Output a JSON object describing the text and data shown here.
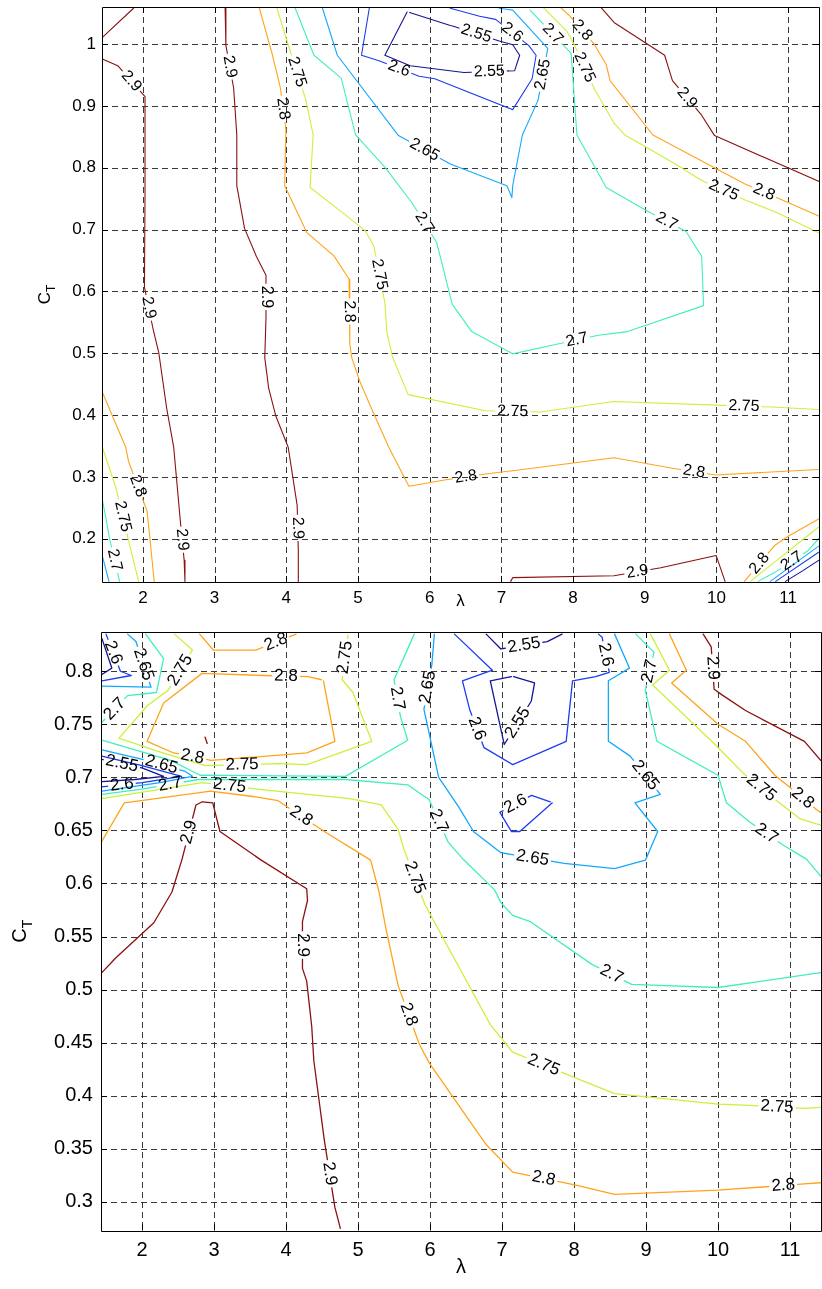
{
  "chart_data": [
    {
      "type": "line",
      "xlabel": "λ",
      "ylabel": "C$_{T}$",
      "xlim": [
        1.43,
        11.43
      ],
      "ylim": [
        0.13,
        1.06
      ],
      "xticks": [
        2,
        3,
        4,
        5,
        6,
        7,
        8,
        9,
        10,
        11
      ],
      "yticks": [
        0.2,
        0.3,
        0.4,
        0.5,
        0.6,
        0.7,
        0.8,
        0.9,
        1
      ],
      "grid": true,
      "series": [
        {
          "color": "#8b1010",
          "x": [
            1.435,
            1.87
          ],
          "values": [
            1.011,
            1.058
          ]
        },
        {
          "color": "#8b1010",
          "x": [
            1.435,
            1.65,
            2.03,
            2.03,
            2.022,
            2.141,
            2.223,
            2.332,
            2.43,
            2.52,
            2.576,
            2.587
          ],
          "values": [
            0.976,
            0.965,
            0.915,
            0.76,
            0.607,
            0.54,
            0.5,
            0.411,
            0.348,
            0.232,
            0.165,
            0.131
          ]
        },
        {
          "color": "#8b1010",
          "x": [
            3.147,
            3.158,
            3.266,
            3.31,
            3.31,
            3.418,
            3.582,
            3.717,
            3.717,
            3.7,
            3.755,
            3.853,
            4.027,
            4.152,
            4.168,
            4.168
          ],
          "values": [
            1.058,
            0.998,
            0.929,
            0.853,
            0.771,
            0.702,
            0.657,
            0.626,
            0.556,
            0.493,
            0.443,
            0.399,
            0.348,
            0.254,
            0.181,
            0.131
          ]
        },
        {
          "color": "#ffa41a",
          "x": [
            3.625,
            3.799,
            3.918,
            3.995,
            3.978,
            4.288,
            4.668,
            4.875,
            4.886,
            4.913,
            5.02,
            5.21,
            5.43,
            5.71,
            6.207,
            6.804,
            7.16,
            8.571,
            9.386,
            9.984,
            11.425
          ],
          "values": [
            1.058,
            0.986,
            0.929,
            0.862,
            0.771,
            0.695,
            0.657,
            0.62,
            0.515,
            0.493,
            0.456,
            0.405,
            0.348,
            0.285,
            0.295,
            0.305,
            0.31,
            0.331,
            0.314,
            0.303,
            0.312
          ]
        },
        {
          "color": "#c8f23c",
          "x": [
            3.87,
            4.027,
            4.27,
            4.375,
            4.332,
            4.723,
            5.103,
            5.223,
            5.375,
            5.402,
            5.484,
            5.7,
            6.777,
            7.54,
            8.571,
            9.995,
            10.77,
            11.425
          ],
          "values": [
            1.058,
            0.999,
            0.911,
            0.853,
            0.768,
            0.733,
            0.698,
            0.673,
            0.582,
            0.534,
            0.493,
            0.433,
            0.407,
            0.405,
            0.422,
            0.416,
            0.413,
            0.409
          ]
        },
        {
          "color": "#40eec0",
          "x": [
            4.125,
            4.386,
            4.766,
            4.967,
            5.375,
            5.755,
            6.098,
            6.315,
            6.587,
            7.158,
            7.755,
            8.353,
            8.76,
            9.82,
            9.793,
            9.576,
            9.033,
            8.462,
            8.054,
            7.973,
            7.457,
            7.4
          ],
          "values": [
            1.058,
            0.982,
            0.945,
            0.853,
            0.801,
            0.743,
            0.679,
            0.579,
            0.535,
            0.499,
            0.514,
            0.529,
            0.535,
            0.577,
            0.657,
            0.697,
            0.73,
            0.768,
            0.853,
            0.985,
            1.048,
            1.055
          ]
        },
        {
          "color": "#12a8ff",
          "x": [
            4.505,
            4.712,
            5.565,
            6.288,
            7.076,
            7.147,
            7.158,
            7.293,
            7.511,
            7.647,
            7.158,
            6.967
          ],
          "values": [
            1.058,
            0.982,
            0.852,
            0.806,
            0.771,
            0.752,
            0.771,
            0.853,
            0.909,
            0.993,
            1.055,
            1.058
          ]
        },
        {
          "color": "#1c3cf0",
          "x": [
            5.158,
            5.049,
            5.293,
            5.853,
            6.07,
            7.158,
            7.429,
            7.484,
            7.38,
            6.92,
            6.696,
            6.288
          ],
          "values": [
            1.058,
            0.982,
            0.973,
            0.948,
            0.944,
            0.894,
            0.944,
            0.982,
            0.998,
            1.04,
            1.045,
            1.058
          ]
        },
        {
          "color": "#141496",
          "x": [
            5.685,
            5.375,
            5.728,
            6.478,
            7.185,
            7.255,
            7.158,
            6.97,
            6.33,
            6.288,
            5.72
          ],
          "values": [
            1.052,
            0.982,
            0.965,
            0.954,
            0.957,
            0.982,
            0.999,
            1.005,
            1.029,
            1.03,
            1.051
          ]
        },
        {
          "color": "#c8f23c",
          "x": [
            7.592,
            7.918,
            8.02,
            8.3,
            8.571,
            8.723,
            9.386,
            9.8,
            10.4,
            10.853,
            11.425
          ],
          "values": [
            1.058,
            1.02,
            0.998,
            0.927,
            0.872,
            0.853,
            0.809,
            0.779,
            0.748,
            0.727,
            0.695
          ]
        },
        {
          "color": "#ffa41a",
          "x": [
            7.837,
            7.95,
            8.3,
            8.462,
            8.516,
            9.114,
            10.391,
            10.935,
            11.425
          ],
          "values": [
            1.058,
            1.046,
            0.999,
            0.967,
            0.941,
            0.853,
            0.774,
            0.747,
            0.722
          ]
        },
        {
          "color": "#8b1010",
          "x": [
            8.397,
            8.571,
            9.277,
            9.386,
            9.793,
            9.973,
            11.425
          ],
          "values": [
            1.058,
            1.035,
            0.982,
            0.941,
            0.885,
            0.852,
            0.778
          ]
        },
        {
          "color": "#8b1010",
          "x": [
            7.13,
            7.158,
            8.571,
            9.223,
            9.995,
            10.12
          ],
          "values": [
            0.131,
            0.137,
            0.14,
            0.153,
            0.173,
            0.131
          ]
        },
        {
          "color": "#ffa41a",
          "x": [
            10.39,
            10.81,
            11.0,
            11.425
          ],
          "values": [
            0.131,
            0.189,
            0.204,
            0.232
          ]
        },
        {
          "color": "#c8f23c",
          "x": [
            10.473,
            11.425
          ],
          "values": [
            0.131,
            0.219
          ]
        },
        {
          "color": "#40eec0",
          "x": [
            10.582,
            10.82,
            11.28,
            11.425
          ],
          "values": [
            0.131,
            0.146,
            0.181,
            0.2
          ]
        },
        {
          "color": "#12a8ff",
          "x": [
            10.75,
            11.425
          ],
          "values": [
            0.131,
            0.188
          ]
        },
        {
          "color": "#1c3cf0",
          "x": [
            10.826,
            11.425
          ],
          "values": [
            0.131,
            0.178
          ]
        },
        {
          "color": "#141496",
          "x": [
            10.962,
            11.2,
            11.425
          ],
          "values": [
            0.131,
            0.148,
            0.165
          ]
        },
        {
          "color": "#ffa41a",
          "x": [
            1.435,
            1.761,
            1.8,
            2.058,
            2.09,
            2.158
          ],
          "values": [
            0.437,
            0.348,
            0.325,
            0.245,
            0.21,
            0.131
          ]
        },
        {
          "color": "#c8f23c",
          "x": [
            1.435,
            1.625,
            1.815,
            1.94
          ],
          "values": [
            0.348,
            0.282,
            0.19,
            0.131
          ]
        },
        {
          "color": "#40eec0",
          "x": [
            1.435,
            1.49,
            1.535,
            1.675
          ],
          "values": [
            0.263,
            0.23,
            0.2,
            0.131
          ]
        },
        {
          "color": "#12a8ff",
          "x": [
            1.435,
            1.527
          ],
          "values": [
            0.172,
            0.131
          ]
        }
      ],
      "annotations": [
        {
          "text": "2.9",
          "x": 1.84,
          "y": 0.94
        },
        {
          "text": "2.9",
          "x": 2.0815,
          "y": 0.5735
        },
        {
          "text": "2.9",
          "x": 2.548,
          "y": 0.1985
        },
        {
          "text": "2.9",
          "x": 3.212,
          "y": 0.9635
        },
        {
          "text": "2.9",
          "x": 3.717,
          "y": 0.591
        },
        {
          "text": "2.9",
          "x": 4.16,
          "y": 0.2175
        },
        {
          "text": "2.9",
          "x": 9.5895,
          "y": 0.913
        },
        {
          "text": "2.9",
          "x": 8.897,
          "y": 0.1465
        },
        {
          "text": "2.8",
          "x": 3.9565,
          "y": 0.8955
        },
        {
          "text": "2.8",
          "x": 4.8805,
          "y": 0.5675
        },
        {
          "text": "2.8",
          "x": 6.5055,
          "y": 0.3
        },
        {
          "text": "2.8",
          "x": 9.685,
          "y": 0.3085
        },
        {
          "text": "2.8",
          "x": 8.125,
          "y": 1.0225
        },
        {
          "text": "2.8",
          "x": 10.663,
          "y": 0.7605
        },
        {
          "text": "2.8",
          "x": 1.929,
          "y": 0.285
        },
        {
          "text": "2.8",
          "x": 10.6,
          "y": 0.16
        },
        {
          "text": "2.75",
          "x": 4.1485,
          "y": 0.955
        },
        {
          "text": "2.75",
          "x": 5.299,
          "y": 0.6275
        },
        {
          "text": "2.75",
          "x": 7.1585,
          "y": 0.406
        },
        {
          "text": "2.75",
          "x": 10.3825,
          "y": 0.4145
        },
        {
          "text": "2.75",
          "x": 8.16,
          "y": 0.9625
        },
        {
          "text": "2.75",
          "x": 10.1,
          "y": 0.7635
        },
        {
          "text": "2.75",
          "x": 1.72,
          "y": 0.236
        },
        {
          "text": "2.7",
          "x": 5.9265,
          "y": 0.711
        },
        {
          "text": "2.7",
          "x": 8.054,
          "y": 0.5215
        },
        {
          "text": "2.7",
          "x": 9.3045,
          "y": 0.7135
        },
        {
          "text": "2.7",
          "x": 7.715,
          "y": 1.0165
        },
        {
          "text": "2.7",
          "x": 1.605,
          "y": 0.1655
        },
        {
          "text": "2.7",
          "x": 11.05,
          "y": 0.1635
        },
        {
          "text": "2.65",
          "x": 5.9265,
          "y": 0.829
        },
        {
          "text": "2.65",
          "x": 7.579,
          "y": 0.951
        },
        {
          "text": "2.6",
          "x": 5.573,
          "y": 0.9605
        },
        {
          "text": "2.6",
          "x": 7.15,
          "y": 1.019
        },
        {
          "text": "2.55",
          "x": 6.8315,
          "y": 0.9555
        },
        {
          "text": "2.55",
          "x": 6.65,
          "y": 1.017
        }
      ]
    },
    {
      "type": "line",
      "xlabel": "λ",
      "ylabel": "C$_{T}$",
      "xlim": [
        1.43,
        11.43
      ],
      "ylim": [
        0.273,
        0.837
      ],
      "xticks": [
        2,
        3,
        4,
        5,
        6,
        7,
        8,
        9,
        10,
        11
      ],
      "yticks": [
        0.3,
        0.35,
        0.4,
        0.45,
        0.5,
        0.55,
        0.6,
        0.65,
        0.7,
        0.75,
        0.8
      ],
      "grid": true,
      "series": [
        {
          "color": "#8b1010",
          "x": [
            1.442,
            1.637,
            2.164,
            2.415,
            2.556,
            2.749,
            2.836,
            2.982,
            3.082,
            3.655,
            4.287,
            4.298,
            4.228,
            4.228,
            4.287,
            4.357,
            4.386,
            4.532,
            4.678,
            4.754
          ],
          "values": [
            0.516,
            0.53,
            0.563,
            0.592,
            0.623,
            0.674,
            0.677,
            0.676,
            0.649,
            0.622,
            0.595,
            0.584,
            0.564,
            0.52,
            0.508,
            0.465,
            0.433,
            0.358,
            0.295,
            0.275
          ]
        },
        {
          "color": "#8b1010",
          "x": [
            9.794,
            9.905,
            9.946,
            10.05,
            10.381,
            11.2,
            11.425
          ],
          "values": [
            0.835,
            0.823,
            0.783,
            0.778,
            0.763,
            0.734,
            0.716
          ]
        },
        {
          "color": "#ffa41a",
          "x": [
            1.442,
            1.754,
            2.953,
            3.538,
            3.889,
            4.532,
            5.175,
            5.292,
            5.38,
            5.556,
            5.848,
            5.988,
            6.779,
            7.148,
            8.009,
            8.565,
            10.0,
            10.614,
            11.2,
            11.425
          ],
          "values": [
            0.64,
            0.676,
            0.687,
            0.682,
            0.678,
            0.649,
            0.622,
            0.592,
            0.56,
            0.504,
            0.449,
            0.431,
            0.354,
            0.328,
            0.316,
            0.307,
            0.311,
            0.314,
            0.317,
            0.318
          ]
        },
        {
          "color": "#c8f23c",
          "x": [
            1.442,
            2.836,
            3.596,
            4.883,
            5.322,
            5.556,
            5.643,
            5.93,
            6.837,
            7.148,
            8.009,
            8.565,
            10.0,
            10.439,
            11.2,
            11.425
          ],
          "values": [
            0.68,
            0.695,
            0.689,
            0.68,
            0.674,
            0.651,
            0.631,
            0.58,
            0.467,
            0.441,
            0.417,
            0.402,
            0.392,
            0.391,
            0.388,
            0.389
          ]
        },
        {
          "color": "#40eec0",
          "x": [
            1.442,
            2.0,
            2.78,
            4.825,
            5.69,
            5.988,
            6.252,
            6.457,
            6.896,
            6.984,
            7.148,
            7.394,
            8.243,
            8.799,
            10.0,
            11.425
          ],
          "values": [
            0.684,
            0.689,
            0.698,
            0.698,
            0.693,
            0.679,
            0.639,
            0.623,
            0.594,
            0.582,
            0.57,
            0.564,
            0.524,
            0.505,
            0.502,
            0.516
          ]
        },
        {
          "color": "#40eec0",
          "x": [
            1.442,
            2.4,
            2.807,
            4.825,
            5.69,
            5.59,
            5.5,
            5.78
          ],
          "values": [
            0.735,
            0.716,
            0.702,
            0.701,
            0.735,
            0.757,
            0.792,
            0.835
          ]
        },
        {
          "color": "#12a8ff",
          "x": [
            8.564,
            8.769,
            8.477,
            8.477,
            8.78,
            9.198,
            8.846,
            9.162,
            8.992,
            8.564,
            7.862,
            6.984,
            6.603,
            6.4,
            6.12,
            5.915,
            6.025,
            6.06
          ],
          "values": [
            0.835,
            0.803,
            0.791,
            0.734,
            0.72,
            0.684,
            0.676,
            0.649,
            0.622,
            0.614,
            0.619,
            0.629,
            0.649,
            0.672,
            0.7,
            0.764,
            0.806,
            0.835
          ]
        },
        {
          "color": "#1c3cf0",
          "x": [
            6.34,
            6.866,
            6.45,
            6.55,
            6.75,
            7.148,
            7.891,
            7.979,
            8.3,
            8.49,
            8.39,
            8.34
          ],
          "values": [
            0.835,
            0.801,
            0.791,
            0.764,
            0.728,
            0.712,
            0.734,
            0.791,
            0.795,
            0.799,
            0.832,
            0.835
          ]
        },
        {
          "color": "#141496",
          "x": [
            6.78,
            6.984,
            7.628,
            7.833
          ],
          "values": [
            0.835,
            0.821,
            0.828,
            0.835
          ]
        },
        {
          "color": "#141496",
          "x": [
            7.13,
            6.837,
            7.03,
            7.407,
            7.452,
            7.16
          ],
          "values": [
            0.795,
            0.791,
            0.731,
            0.772,
            0.789,
            0.795
          ]
        },
        {
          "color": "#1c3cf0",
          "x": [
            7.698,
            7.247,
            7.13,
            6.97,
            7.41,
            7.67
          ],
          "values": [
            0.676,
            0.649,
            0.649,
            0.667,
            0.683,
            0.677
          ]
        },
        {
          "color": "#40eec0",
          "x": [
            8.858,
            9.11,
            8.99,
            9.151,
            10.0,
            10.117,
            10.439,
            10.907,
            11.228,
            11.425
          ],
          "values": [
            0.835,
            0.818,
            0.782,
            0.734,
            0.702,
            0.676,
            0.658,
            0.636,
            0.623,
            0.607
          ]
        },
        {
          "color": "#c8f23c",
          "x": [
            9.062,
            9.326,
            9.092,
            9.912,
            10.35,
            10.85,
            11.14,
            11.425
          ],
          "values": [
            0.835,
            0.801,
            0.787,
            0.734,
            0.704,
            0.676,
            0.661,
            0.655
          ]
        },
        {
          "color": "#ffa41a",
          "x": [
            9.326,
            9.56,
            9.355,
            10.0,
            10.381,
            10.79,
            10.97,
            11.38,
            11.425
          ],
          "values": [
            0.835,
            0.801,
            0.789,
            0.75,
            0.734,
            0.702,
            0.692,
            0.669,
            0.667
          ]
        },
        {
          "color": "#ffa41a",
          "x": [
            2.8,
            2.99,
            3.58,
            4.14
          ],
          "values": [
            0.835,
            0.82,
            0.82,
            0.835
          ]
        },
        {
          "color": "#ffa41a",
          "x": [
            4.52,
            4.68,
            4.29,
            2.96,
            2.44,
            2.07,
            2.3,
            2.833,
            3.69,
            4.31,
            4.49
          ],
          "values": [
            0.791,
            0.734,
            0.723,
            0.716,
            0.723,
            0.734,
            0.77,
            0.798,
            0.796,
            0.795,
            0.792
          ]
        },
        {
          "color": "#c8f23c",
          "x": [
            2.45,
            2.7,
            2.36,
            2.08,
            1.68,
            2.2,
            2.88,
            3.9,
            4.29,
            5.19,
            4.93,
            4.78,
            4.86
          ],
          "values": [
            0.835,
            0.82,
            0.782,
            0.768,
            0.737,
            0.725,
            0.711,
            0.713,
            0.712,
            0.734,
            0.78,
            0.792,
            0.834
          ]
        },
        {
          "color": "#141496",
          "x": [
            1.442,
            1.58,
            1.442
          ],
          "values": [
            0.831,
            0.803,
            0.797
          ]
        },
        {
          "color": "#1c3cf0",
          "x": [
            1.5,
            1.7,
            1.85,
            1.442
          ],
          "values": [
            0.835,
            0.8,
            0.796,
            0.791
          ]
        },
        {
          "color": "#12a8ff",
          "x": [
            1.8,
            1.915,
            2.125,
            1.442
          ],
          "values": [
            0.835,
            0.828,
            0.785,
            0.786
          ]
        },
        {
          "color": "#40eec0",
          "x": [
            2.05,
            2.3,
            2.2,
            1.8,
            1.442
          ],
          "values": [
            0.835,
            0.812,
            0.78,
            0.777,
            0.752
          ]
        },
        {
          "color": "#141496",
          "x": [
            1.442,
            1.998,
            2.3,
            1.9,
            1.442
          ],
          "values": [
            0.717,
            0.709,
            0.701,
            0.698,
            0.696
          ]
        },
        {
          "color": "#1c3cf0",
          "x": [
            1.442,
            2.0,
            2.55,
            2.0,
            1.442
          ],
          "values": [
            0.72,
            0.711,
            0.701,
            0.695,
            0.691
          ]
        },
        {
          "color": "#12a8ff",
          "x": [
            1.442,
            1.95,
            2.59,
            2.7,
            2.25,
            1.442
          ],
          "values": [
            0.726,
            0.718,
            0.706,
            0.701,
            0.695,
            0.687
          ]
        },
        {
          "color": "#8b1010",
          "x": [
            2.875,
            2.905
          ],
          "values": [
            0.738,
            0.732
          ]
        }
      ],
      "annotations": [
        {
          "text": "2.9",
          "x": 2.6525,
          "y": 0.6485
        },
        {
          "text": "2.9",
          "x": 4.228,
          "y": 0.542
        },
        {
          "text": "2.9",
          "x": 4.605,
          "y": 0.3265
        },
        {
          "text": "2.9",
          "x": 9.9255,
          "y": 0.803
        },
        {
          "text": "2.8",
          "x": 4.2105,
          "y": 0.6635
        },
        {
          "text": "2.8",
          "x": 5.702,
          "y": 0.4765
        },
        {
          "text": "2.8",
          "x": 7.5785,
          "y": 0.322
        },
        {
          "text": "2.8",
          "x": 10.907,
          "y": 0.3155
        },
        {
          "text": "2.8",
          "x": 11.175,
          "y": 0.6805
        },
        {
          "text": "2.8",
          "x": 3.86,
          "y": 0.8275
        },
        {
          "text": "2.8",
          "x": 4.0,
          "y": 0.7955
        },
        {
          "text": "2.8",
          "x": 2.7,
          "y": 0.7195
        },
        {
          "text": "2.75",
          "x": 3.216,
          "y": 0.692
        },
        {
          "text": "2.75",
          "x": 5.7865,
          "y": 0.6055
        },
        {
          "text": "2.75",
          "x": 7.5785,
          "y": 0.429
        },
        {
          "text": "2.75",
          "x": 10.8195,
          "y": 0.3895
        },
        {
          "text": "2.75",
          "x": 10.6,
          "y": 0.69
        },
        {
          "text": "2.75",
          "x": 2.53,
          "y": 0.801
        },
        {
          "text": "2.75",
          "x": 3.39,
          "y": 0.712
        },
        {
          "text": "2.75",
          "x": 4.82,
          "y": 0.813
        },
        {
          "text": "2.7",
          "x": 6.12,
          "y": 0.659
        },
        {
          "text": "2.7",
          "x": 8.521,
          "y": 0.5145
        },
        {
          "text": "2.7",
          "x": 9.05,
          "y": 0.8
        },
        {
          "text": "2.7",
          "x": 10.673,
          "y": 0.647
        },
        {
          "text": "2.7",
          "x": 5.545,
          "y": 0.7745
        },
        {
          "text": "2.7",
          "x": 1.621,
          "y": 0.7645
        },
        {
          "text": "2.7",
          "x": 2.39,
          "y": 0.6935
        },
        {
          "text": "2.65",
          "x": 8.989,
          "y": 0.702
        },
        {
          "text": "2.65",
          "x": 7.423,
          "y": 0.624
        },
        {
          "text": "2.65",
          "x": 5.97,
          "y": 0.785
        },
        {
          "text": "2.65",
          "x": 2.02,
          "y": 0.8065
        },
        {
          "text": "2.65",
          "x": 2.27,
          "y": 0.712
        },
        {
          "text": "2.6",
          "x": 6.65,
          "y": 0.746
        },
        {
          "text": "2.6",
          "x": 8.44,
          "y": 0.8155
        },
        {
          "text": "2.6",
          "x": 7.19,
          "y": 0.675
        },
        {
          "text": "2.6",
          "x": 1.6,
          "y": 0.8175
        },
        {
          "text": "2.6",
          "x": 1.721,
          "y": 0.693
        },
        {
          "text": "2.55",
          "x": 7.306,
          "y": 0.8245
        },
        {
          "text": "2.55",
          "x": 7.2185,
          "y": 0.7515
        },
        {
          "text": "2.55",
          "x": 1.72,
          "y": 0.713
        }
      ]
    }
  ]
}
